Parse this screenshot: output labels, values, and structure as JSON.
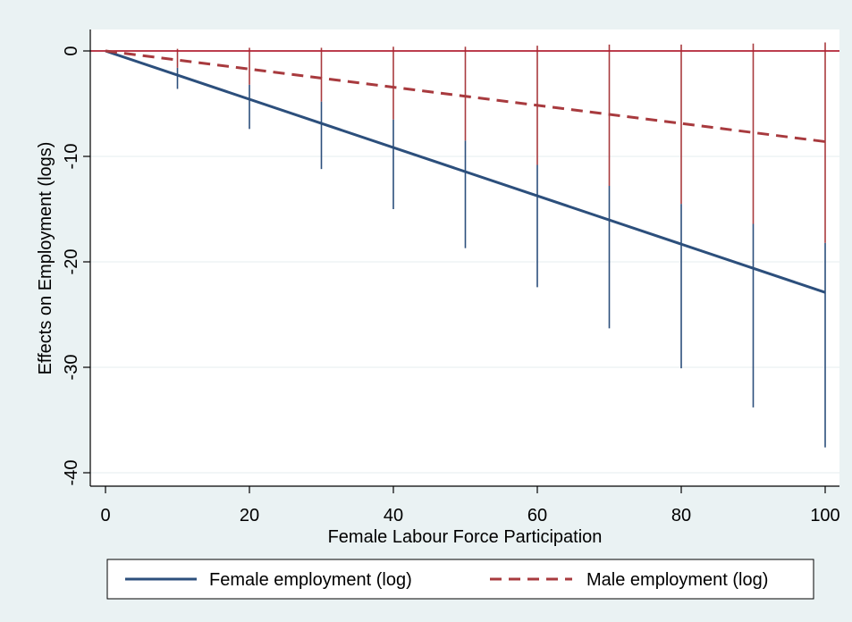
{
  "chart_data": {
    "type": "line",
    "xlabel": "Female Labour Force Participation",
    "ylabel": "Effects on Employment (logs)",
    "xlim": [
      -2,
      102
    ],
    "ylim": [
      -41,
      2.2
    ],
    "x_ticks": [
      0,
      20,
      40,
      60,
      80,
      100
    ],
    "x_tick_labels": [
      "0",
      "20",
      "40",
      "60",
      "80",
      "100"
    ],
    "y_ticks": [
      0,
      -10,
      -20,
      -30,
      -40
    ],
    "y_tick_labels": [
      "0",
      "-10",
      "-20",
      "-30",
      "-40"
    ],
    "grid": "horizontal",
    "legend_position": "bottom",
    "reference_line": {
      "y": 0,
      "color": "#b22234"
    },
    "series": [
      {
        "name": "Female employment (log)",
        "style": "solid",
        "color": "#2c4f7c",
        "x": [
          0,
          100
        ],
        "y": [
          0,
          -22.9
        ]
      },
      {
        "name": "Male employment (log)",
        "style": "dashed",
        "color": "#a83a3e",
        "x": [
          0,
          100
        ],
        "y": [
          0,
          -8.6
        ]
      }
    ],
    "intervals": [
      {
        "series": "Female employment (log)",
        "color": "#2c4f7c",
        "x": [
          10,
          20,
          30,
          40,
          50,
          60,
          70,
          80,
          90,
          100
        ],
        "lower": [
          -3.6,
          -7.4,
          -11.2,
          -15.0,
          -18.7,
          -22.4,
          -26.3,
          -30.1,
          -33.8,
          -37.6
        ],
        "upper": [
          -1.6,
          -3.2,
          -4.8,
          -6.5,
          -8.5,
          -10.8,
          -12.8,
          -14.5,
          -16.4,
          -18.2
        ]
      },
      {
        "series": "Male employment (log)",
        "color": "#a83a3e",
        "x": [
          10,
          20,
          30,
          40,
          50,
          60,
          70,
          80,
          90,
          100
        ],
        "lower": [
          -1.6,
          -3.2,
          -4.8,
          -6.5,
          -8.5,
          -10.8,
          -12.8,
          -14.5,
          -16.4,
          -18.2
        ],
        "upper": [
          0.2,
          0.3,
          0.3,
          0.4,
          0.4,
          0.5,
          0.6,
          0.6,
          0.7,
          0.8
        ]
      }
    ]
  }
}
